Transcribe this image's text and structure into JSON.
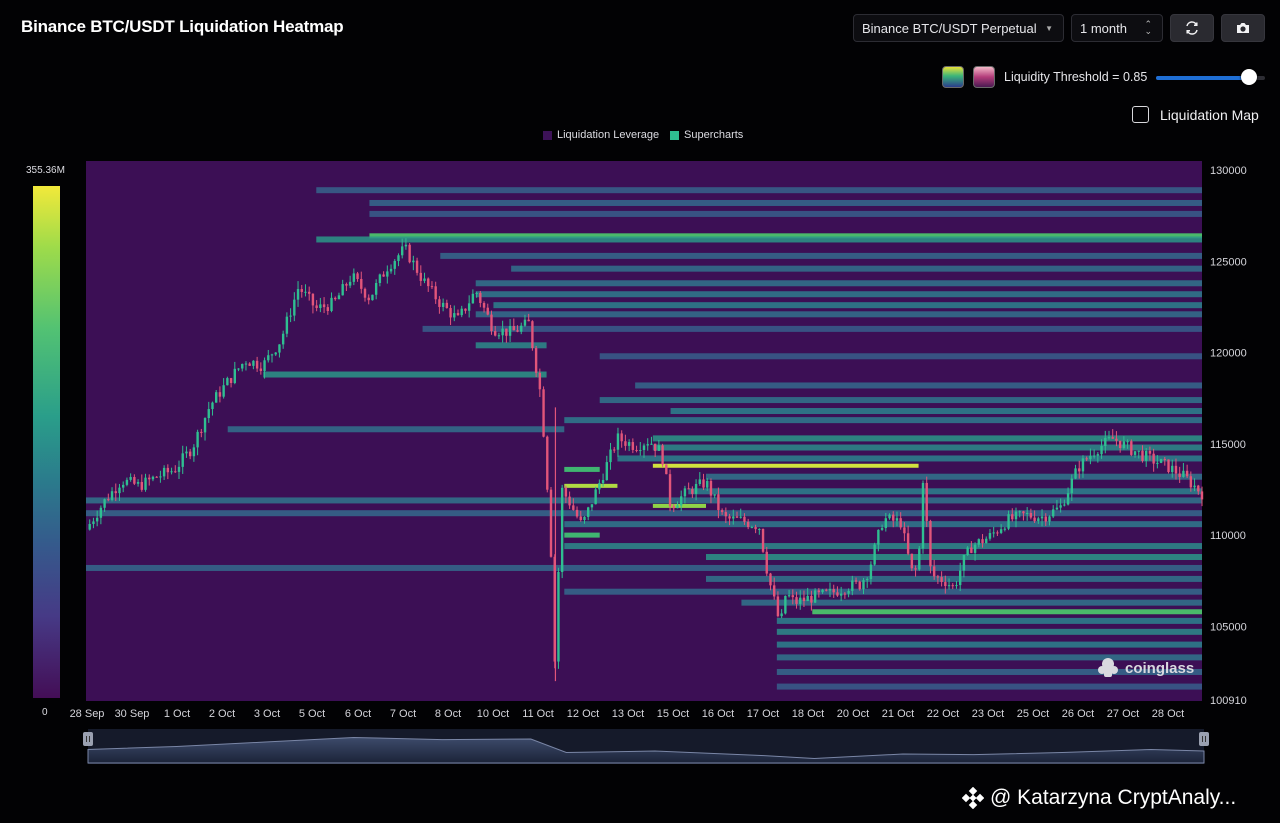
{
  "header": {
    "title": "Binance BTC/USDT Liquidation Heatmap",
    "pair_select": "Binance BTC/USDT Perpetual",
    "range_select": "1 month",
    "refresh_icon": "refresh-icon",
    "camera_icon": "camera-icon"
  },
  "controls": {
    "threshold_label": "Liquidity Threshold = 0.85",
    "threshold_value": 0.85,
    "liquidation_map_label": "Liquidation Map",
    "liquidation_map_checked": false
  },
  "colors": {
    "background": "#020204",
    "heat_low": "#440e56",
    "heat_high": "#f2e93a",
    "candle_up": "#2fbf91",
    "candle_down": "#e2557a",
    "legend_leverage": "#3c1257",
    "legend_supercharts": "#2fbf91"
  },
  "watermark": {
    "brand": "coinglass",
    "author": "@ Katarzyna CryptAnaly..."
  },
  "chart_data": {
    "type": "heatmap",
    "title": "Binance BTC/USDT Liquidation Heatmap",
    "legend": [
      "Liquidation Leverage",
      "Supercharts"
    ],
    "colorbar": {
      "max_label": "355.36M",
      "min_label": "0"
    },
    "x_ticks": [
      "28 Sep",
      "30 Sep",
      "1 Oct",
      "2 Oct",
      "3 Oct",
      "5 Oct",
      "6 Oct",
      "7 Oct",
      "8 Oct",
      "10 Oct",
      "11 Oct",
      "12 Oct",
      "13 Oct",
      "15 Oct",
      "16 Oct",
      "17 Oct",
      "18 Oct",
      "20 Oct",
      "21 Oct",
      "22 Oct",
      "23 Oct",
      "25 Oct",
      "26 Oct",
      "27 Oct",
      "28 Oct"
    ],
    "y_ticks": [
      130000,
      125000,
      120000,
      115000,
      110000,
      105000
    ],
    "y_min_label": "100910",
    "ylim": [
      100910,
      130500
    ],
    "price_path": [
      [
        0,
        110300
      ],
      [
        1,
        111800
      ],
      [
        2,
        113000
      ],
      [
        3,
        112700
      ],
      [
        4,
        113200
      ],
      [
        5,
        113600
      ],
      [
        6,
        114800
      ],
      [
        7,
        117100
      ],
      [
        8,
        118400
      ],
      [
        9,
        119600
      ],
      [
        10,
        119300
      ],
      [
        11,
        120700
      ],
      [
        12,
        123600
      ],
      [
        13,
        122400
      ],
      [
        14,
        122700
      ],
      [
        15,
        124200
      ],
      [
        16,
        123000
      ],
      [
        17,
        124700
      ],
      [
        18,
        125700
      ],
      [
        19,
        124000
      ],
      [
        20,
        122700
      ],
      [
        21,
        121800
      ],
      [
        22,
        123400
      ],
      [
        23,
        121300
      ],
      [
        24,
        121100
      ],
      [
        25,
        121600
      ],
      [
        25.7,
        117500
      ],
      [
        26.2,
        110500
      ],
      [
        26.5,
        102000
      ],
      [
        26.8,
        112600
      ],
      [
        27.3,
        111800
      ],
      [
        28,
        110500
      ],
      [
        29,
        112900
      ],
      [
        30,
        115300
      ],
      [
        31,
        114900
      ],
      [
        31.8,
        115200
      ],
      [
        32.5,
        114500
      ],
      [
        33,
        111600
      ],
      [
        34,
        112400
      ],
      [
        35,
        112900
      ],
      [
        36,
        110900
      ],
      [
        37,
        110800
      ],
      [
        38,
        110500
      ],
      [
        38.5,
        107800
      ],
      [
        39.2,
        105000
      ],
      [
        39.5,
        106800
      ],
      [
        40,
        106300
      ],
      [
        41,
        106600
      ],
      [
        42,
        106800
      ],
      [
        43,
        107200
      ],
      [
        43.7,
        107300
      ],
      [
        44.2,
        108100
      ],
      [
        45,
        110900
      ],
      [
        46,
        110700
      ],
      [
        46.6,
        108000
      ],
      [
        47,
        108100
      ],
      [
        47.2,
        113700
      ],
      [
        47.7,
        107800
      ],
      [
        48.5,
        107500
      ],
      [
        49,
        107100
      ],
      [
        49.5,
        108500
      ],
      [
        50,
        109400
      ],
      [
        51,
        109900
      ],
      [
        52,
        110800
      ],
      [
        53,
        111100
      ],
      [
        54,
        111000
      ],
      [
        55,
        111500
      ],
      [
        56,
        113700
      ],
      [
        57,
        114700
      ],
      [
        58,
        115300
      ],
      [
        59,
        114700
      ],
      [
        60,
        114200
      ],
      [
        61,
        113800
      ],
      [
        62,
        113200
      ],
      [
        63,
        112300
      ]
    ],
    "bands": [
      {
        "price": 126400,
        "x_from": 16,
        "x_to": 63,
        "intensity": 0.72
      },
      {
        "price": 126200,
        "x_from": 13,
        "x_to": 63,
        "intensity": 0.55
      },
      {
        "price": 128900,
        "x_from": 13,
        "x_to": 63,
        "intensity": 0.32
      },
      {
        "price": 128200,
        "x_from": 16,
        "x_to": 63,
        "intensity": 0.35
      },
      {
        "price": 127600,
        "x_from": 16,
        "x_to": 63,
        "intensity": 0.3
      },
      {
        "price": 125300,
        "x_from": 20,
        "x_to": 63,
        "intensity": 0.35
      },
      {
        "price": 124600,
        "x_from": 24,
        "x_to": 63,
        "intensity": 0.38
      },
      {
        "price": 123800,
        "x_from": 22,
        "x_to": 63,
        "intensity": 0.4
      },
      {
        "price": 123200,
        "x_from": 22,
        "x_to": 63,
        "intensity": 0.42
      },
      {
        "price": 122600,
        "x_from": 23,
        "x_to": 63,
        "intensity": 0.45
      },
      {
        "price": 122100,
        "x_from": 22,
        "x_to": 63,
        "intensity": 0.38
      },
      {
        "price": 121300,
        "x_from": 19,
        "x_to": 63,
        "intensity": 0.3
      },
      {
        "price": 120400,
        "x_from": 22,
        "x_to": 26,
        "intensity": 0.5
      },
      {
        "price": 119800,
        "x_from": 29,
        "x_to": 63,
        "intensity": 0.3
      },
      {
        "price": 118800,
        "x_from": 10,
        "x_to": 26,
        "intensity": 0.55
      },
      {
        "price": 118200,
        "x_from": 31,
        "x_to": 63,
        "intensity": 0.35
      },
      {
        "price": 117400,
        "x_from": 29,
        "x_to": 63,
        "intensity": 0.4
      },
      {
        "price": 116800,
        "x_from": 33,
        "x_to": 63,
        "intensity": 0.45
      },
      {
        "price": 116300,
        "x_from": 27,
        "x_to": 63,
        "intensity": 0.42
      },
      {
        "price": 115800,
        "x_from": 8,
        "x_to": 27,
        "intensity": 0.38
      },
      {
        "price": 115300,
        "x_from": 32,
        "x_to": 63,
        "intensity": 0.55
      },
      {
        "price": 114800,
        "x_from": 32,
        "x_to": 63,
        "intensity": 0.5
      },
      {
        "price": 114200,
        "x_from": 30,
        "x_to": 63,
        "intensity": 0.45
      },
      {
        "price": 113800,
        "x_from": 32,
        "x_to": 47,
        "intensity": 0.95
      },
      {
        "price": 113600,
        "x_from": 27,
        "x_to": 29,
        "intensity": 0.7
      },
      {
        "price": 113200,
        "x_from": 35,
        "x_to": 63,
        "intensity": 0.4
      },
      {
        "price": 112700,
        "x_from": 27,
        "x_to": 30,
        "intensity": 0.9
      },
      {
        "price": 112400,
        "x_from": 34,
        "x_to": 63,
        "intensity": 0.45
      },
      {
        "price": 111900,
        "x_from": 0,
        "x_to": 63,
        "intensity": 0.4
      },
      {
        "price": 111600,
        "x_from": 32,
        "x_to": 35,
        "intensity": 0.85
      },
      {
        "price": 111200,
        "x_from": 0,
        "x_to": 63,
        "intensity": 0.35
      },
      {
        "price": 110600,
        "x_from": 27,
        "x_to": 63,
        "intensity": 0.42
      },
      {
        "price": 110000,
        "x_from": 27,
        "x_to": 29,
        "intensity": 0.7
      },
      {
        "price": 109400,
        "x_from": 27,
        "x_to": 63,
        "intensity": 0.5
      },
      {
        "price": 108800,
        "x_from": 35,
        "x_to": 63,
        "intensity": 0.55
      },
      {
        "price": 108200,
        "x_from": 0,
        "x_to": 63,
        "intensity": 0.35
      },
      {
        "price": 107600,
        "x_from": 35,
        "x_to": 63,
        "intensity": 0.4
      },
      {
        "price": 106900,
        "x_from": 27,
        "x_to": 63,
        "intensity": 0.35
      },
      {
        "price": 106300,
        "x_from": 37,
        "x_to": 63,
        "intensity": 0.4
      },
      {
        "price": 105800,
        "x_from": 41,
        "x_to": 63,
        "intensity": 0.72
      },
      {
        "price": 105300,
        "x_from": 39,
        "x_to": 63,
        "intensity": 0.45
      },
      {
        "price": 104700,
        "x_from": 39,
        "x_to": 63,
        "intensity": 0.5
      },
      {
        "price": 104000,
        "x_from": 39,
        "x_to": 63,
        "intensity": 0.45
      },
      {
        "price": 103300,
        "x_from": 39,
        "x_to": 63,
        "intensity": 0.4
      },
      {
        "price": 102500,
        "x_from": 39,
        "x_to": 63,
        "intensity": 0.35
      },
      {
        "price": 101700,
        "x_from": 39,
        "x_to": 63,
        "intensity": 0.3
      }
    ],
    "navigator_path": [
      [
        0,
        0.45
      ],
      [
        5,
        0.55
      ],
      [
        10,
        0.7
      ],
      [
        15,
        0.85
      ],
      [
        20,
        0.78
      ],
      [
        25,
        0.8
      ],
      [
        27,
        0.35
      ],
      [
        32,
        0.4
      ],
      [
        38,
        0.25
      ],
      [
        41,
        0.15
      ],
      [
        46,
        0.3
      ],
      [
        50,
        0.28
      ],
      [
        55,
        0.35
      ],
      [
        60,
        0.45
      ],
      [
        63,
        0.4
      ]
    ]
  }
}
